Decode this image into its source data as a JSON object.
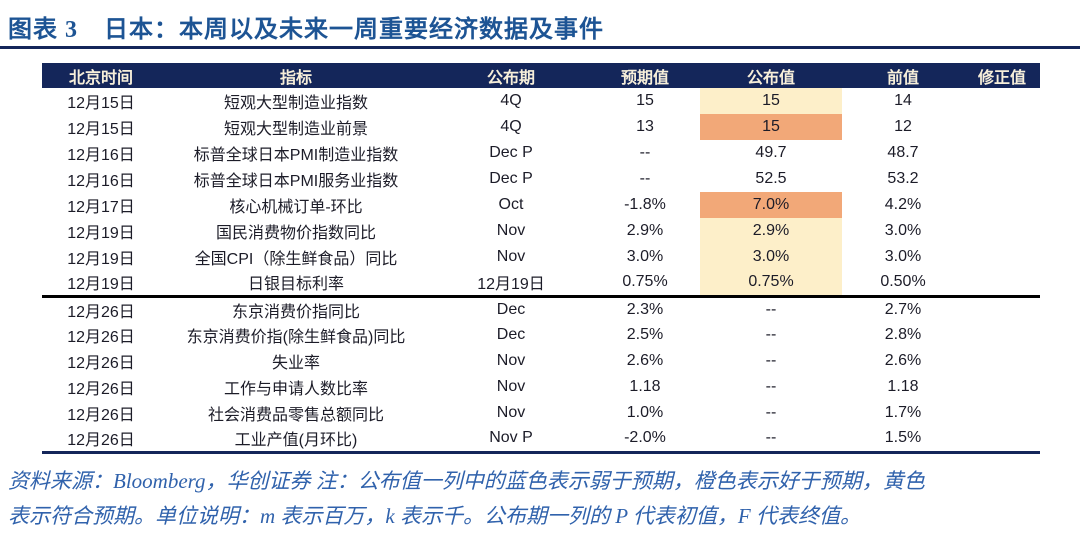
{
  "title": {
    "figure_label": "图表 3",
    "text": "日本：本周以及未来一周重要经济数据及事件"
  },
  "table": {
    "columns": [
      "北京时间",
      "指标",
      "公布期",
      "预期值",
      "公布值",
      "前值",
      "修正值"
    ],
    "rows": [
      {
        "date": "12月15日",
        "indicator": "短观大型制造业指数",
        "period": "4Q",
        "expected": "15",
        "actual": "15",
        "prior": "14",
        "revised": "",
        "highlight": "yellow",
        "group_end": false
      },
      {
        "date": "12月15日",
        "indicator": "短观大型制造业前景",
        "period": "4Q",
        "expected": "13",
        "actual": "15",
        "prior": "12",
        "revised": "",
        "highlight": "orange",
        "group_end": false
      },
      {
        "date": "12月16日",
        "indicator": "标普全球日本PMI制造业指数",
        "period": "Dec P",
        "expected": "--",
        "actual": "49.7",
        "prior": "48.7",
        "revised": "",
        "highlight": "none",
        "group_end": false
      },
      {
        "date": "12月16日",
        "indicator": "标普全球日本PMI服务业指数",
        "period": "Dec P",
        "expected": "--",
        "actual": "52.5",
        "prior": "53.2",
        "revised": "",
        "highlight": "none",
        "group_end": false
      },
      {
        "date": "12月17日",
        "indicator": "核心机械订单-环比",
        "period": "Oct",
        "expected": "-1.8%",
        "actual": "7.0%",
        "prior": "4.2%",
        "revised": "",
        "highlight": "orange",
        "group_end": false
      },
      {
        "date": "12月19日",
        "indicator": "国民消费物价指数同比",
        "period": "Nov",
        "expected": "2.9%",
        "actual": "2.9%",
        "prior": "3.0%",
        "revised": "",
        "highlight": "yellow",
        "group_end": false
      },
      {
        "date": "12月19日",
        "indicator": "全国CPI（除生鲜食品）同比",
        "period": "Nov",
        "expected": "3.0%",
        "actual": "3.0%",
        "prior": "3.0%",
        "revised": "",
        "highlight": "yellow",
        "group_end": false
      },
      {
        "date": "12月19日",
        "indicator": "日银目标利率",
        "period": "12月19日",
        "expected": "0.75%",
        "actual": "0.75%",
        "prior": "0.50%",
        "revised": "",
        "highlight": "yellow",
        "group_end": true
      },
      {
        "date": "12月26日",
        "indicator": "东京消费价指同比",
        "period": "Dec",
        "expected": "2.3%",
        "actual": "--",
        "prior": "2.7%",
        "revised": "",
        "highlight": "none",
        "group_end": false
      },
      {
        "date": "12月26日",
        "indicator": "东京消费价指(除生鲜食品)同比",
        "period": "Dec",
        "expected": "2.5%",
        "actual": "--",
        "prior": "2.8%",
        "revised": "",
        "highlight": "none",
        "group_end": false
      },
      {
        "date": "12月26日",
        "indicator": "失业率",
        "period": "Nov",
        "expected": "2.6%",
        "actual": "--",
        "prior": "2.6%",
        "revised": "",
        "highlight": "none",
        "group_end": false
      },
      {
        "date": "12月26日",
        "indicator": "工作与申请人数比率",
        "period": "Nov",
        "expected": "1.18",
        "actual": "--",
        "prior": "1.18",
        "revised": "",
        "highlight": "none",
        "group_end": false
      },
      {
        "date": "12月26日",
        "indicator": "社会消费品零售总额同比",
        "period": "Nov",
        "expected": "1.0%",
        "actual": "--",
        "prior": "1.7%",
        "revised": "",
        "highlight": "none",
        "group_end": false
      },
      {
        "date": "12月26日",
        "indicator": "工业产值(月环比)",
        "period": "Nov P",
        "expected": "-2.0%",
        "actual": "--",
        "prior": "1.5%",
        "revised": "",
        "highlight": "none",
        "group_end": false
      }
    ]
  },
  "footnote": {
    "line1": "资料来源：Bloomberg，华创证券 注：公布值一列中的蓝色表示弱于预期，橙色表示好于预期，黄色",
    "line2": "表示符合预期。单位说明：m 表示百万，k 表示千。公布期一列的 P 代表初值，F 代表终值。"
  },
  "colors": {
    "header_navy": "#14265a",
    "header_text_cream": "#f7efda",
    "highlight_yellow": "#fdefc9",
    "highlight_orange": "#f2a878",
    "title_blue": "#1d5494",
    "footnote_blue": "#3062ac",
    "group_separator_black": "#000000"
  }
}
